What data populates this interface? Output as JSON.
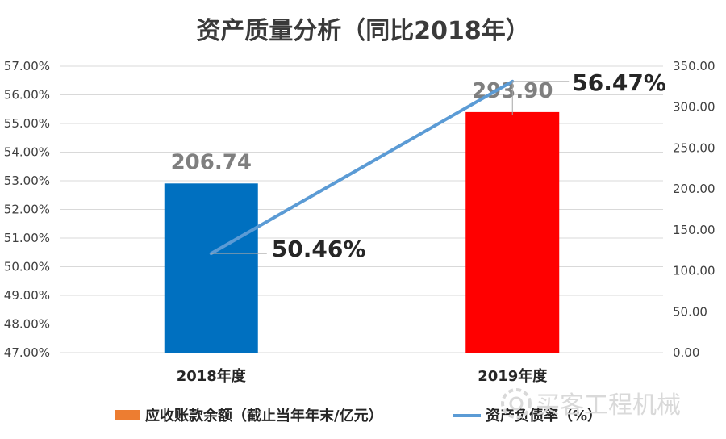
{
  "chart_data": {
    "type": "bar",
    "title": "资产质量分析（同比2018年）",
    "categories": [
      "2018年度",
      "2019年度"
    ],
    "bar_series": {
      "name": "应收账款余额（截止当年年末/亿元）",
      "axis": "right",
      "values": [
        206.74,
        293.9
      ],
      "value_labels": [
        "206.74",
        "293.90"
      ],
      "colors": [
        "#0070c0",
        "#ff0000"
      ]
    },
    "line_series": {
      "name": "资产负债率（%）",
      "axis": "left",
      "values": [
        50.46,
        56.47
      ],
      "value_labels": [
        "50.46%",
        "56.47%"
      ],
      "color": "#5b9bd5"
    },
    "left_axis": {
      "min": 47,
      "max": 57,
      "step": 1,
      "tick_labels": [
        "47.00%",
        "48.00%",
        "49.00%",
        "50.00%",
        "51.00%",
        "52.00%",
        "53.00%",
        "54.00%",
        "55.00%",
        "56.00%",
        "57.00%"
      ]
    },
    "right_axis": {
      "min": 0,
      "max": 350,
      "step": 50,
      "tick_labels": [
        "0.00",
        "50.00",
        "100.00",
        "150.00",
        "200.00",
        "250.00",
        "300.00",
        "350.00"
      ]
    },
    "grid": true,
    "legend": "bottom",
    "legend_colors": {
      "bar": "#ed7d31",
      "line": "#5b9bd5"
    }
  },
  "watermark": {
    "icon": "gear-icon",
    "text": "买客工程机械"
  }
}
